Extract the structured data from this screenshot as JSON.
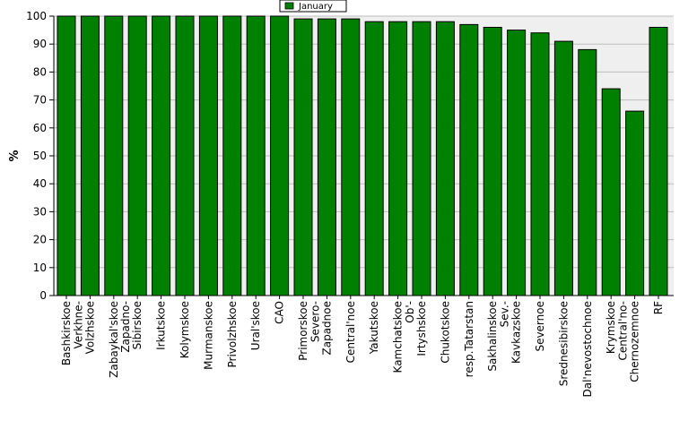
{
  "chart_data": {
    "type": "bar",
    "title": "",
    "xlabel": "",
    "ylabel": "%",
    "ylim": [
      0,
      100
    ],
    "yticks": [
      0,
      10,
      20,
      30,
      40,
      50,
      60,
      70,
      80,
      90,
      100
    ],
    "grid": true,
    "legend_position": "top-center",
    "colors": {
      "bar": "#008000",
      "bar_edge": "#000000",
      "plot_bg": "#efefef",
      "grid": "#bdbdbd"
    },
    "series": [
      {
        "name": "January",
        "values": [
          100,
          100,
          100,
          100,
          100,
          100,
          100,
          100,
          100,
          100,
          99,
          99,
          99,
          98,
          98,
          98,
          98,
          97,
          96,
          95,
          94,
          91,
          88,
          74,
          66,
          96
        ]
      }
    ],
    "categories": [
      "Bashkirskoe",
      "Verkhne-\nVolzhskoe",
      "Zabaykal'skoe",
      "Zapadno-\nSibirskoe",
      "Irkutskoe",
      "Kolymskoe",
      "Murmanskoe",
      "Privolzhskoe",
      "Ural'skoe",
      "CAO",
      "Primorskoe",
      "Severo-\nZapadnoe",
      "Central'noe",
      "Yakutskoe",
      "Kamchatskoe",
      "Ob'-\nIrtyshskoe",
      "Chukotskoe",
      "resp.Tatarstan",
      "Sakhalinskoe",
      "Sev.-\nKavkazskoe",
      "Severnoe",
      "Srednesibirskoe",
      "Dal'nevostochnoe",
      "Krymskoe",
      "Central'no-\nChernozemnoe",
      "RF"
    ]
  }
}
